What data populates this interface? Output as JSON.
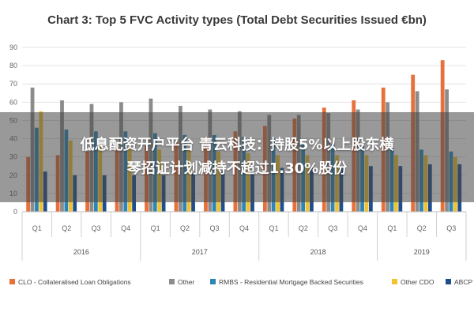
{
  "chart_data": {
    "type": "bar",
    "title": "Chart 3: Top 5 FVC Activity types (Total Debt Securities Issued €bn)",
    "yticks": [
      "0",
      "10",
      "20",
      "30",
      "40",
      "50",
      "60",
      "70",
      "80",
      "90"
    ],
    "ylim": [
      0,
      90
    ],
    "categories": [
      "Q1",
      "Q2",
      "Q3",
      "Q4",
      "Q1",
      "Q2",
      "Q3",
      "Q4",
      "Q1",
      "Q2",
      "Q3",
      "Q4",
      "Q1",
      "Q2",
      "Q3"
    ],
    "years": [
      {
        "label": "2016",
        "start": 0,
        "end": 3
      },
      {
        "label": "2017",
        "start": 4,
        "end": 7
      },
      {
        "label": "2018",
        "start": 8,
        "end": 11
      },
      {
        "label": "2019",
        "start": 12,
        "end": 14
      }
    ],
    "series": [
      {
        "name": "CLO - Collateralised Loan Obligations",
        "color": "#e8703a",
        "values": [
          30,
          31,
          33,
          35,
          36,
          38,
          41,
          44,
          47,
          51,
          57,
          61,
          68,
          75,
          83
        ]
      },
      {
        "name": "Other",
        "color": "#8c8c8c",
        "values": [
          68,
          61,
          59,
          60,
          62,
          58,
          56,
          55,
          53,
          53,
          54,
          56,
          60,
          66,
          67
        ]
      },
      {
        "name": "RMBS - Residential Mortgage Backed Securities",
        "color": "#2e86b5",
        "values": [
          46,
          45,
          44,
          44,
          43,
          42,
          42,
          41,
          40,
          38,
          37,
          36,
          35,
          34,
          33
        ]
      },
      {
        "name": "Other CDO",
        "color": "#f2c230",
        "values": [
          55,
          39,
          36,
          35,
          34,
          34,
          33,
          32,
          31,
          31,
          31,
          31,
          31,
          31,
          30
        ]
      },
      {
        "name": "ABCP",
        "color": "#1f4e8c",
        "values": [
          22,
          20,
          20,
          20,
          20,
          21,
          22,
          23,
          24,
          24,
          25,
          25,
          25,
          26,
          26
        ]
      }
    ],
    "grid": true,
    "legend_position": "bottom"
  },
  "overlay": {
    "line1": "低息配资开户平台 青云科技：持股5%以上股东横",
    "line2": "琴招证计划减持不超过1.30%股份"
  }
}
